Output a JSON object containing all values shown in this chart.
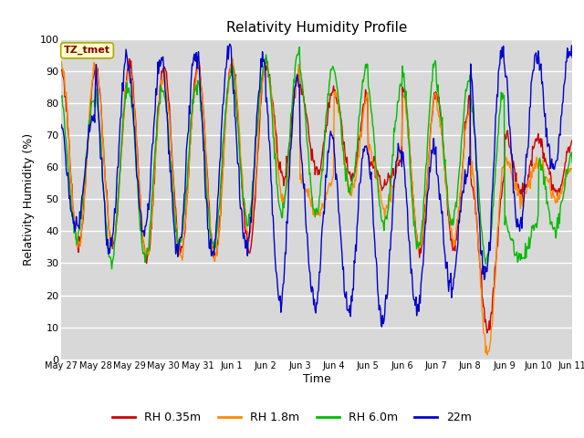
{
  "title": "Relativity Humidity Profile",
  "xlabel": "Time",
  "ylabel": "Relativity Humidity (%)",
  "ylim": [
    0,
    100
  ],
  "yticks": [
    0,
    10,
    20,
    30,
    40,
    50,
    60,
    70,
    80,
    90,
    100
  ],
  "plot_bg": "#d8d8d8",
  "fig_bg": "#ffffff",
  "legend_label": "TZ_tmet",
  "series_colors": [
    "#cc0000",
    "#ff8800",
    "#00bb00",
    "#0000cc"
  ],
  "series_labels": [
    "RH 0.35m",
    "RH 1.8m",
    "RH 6.0m",
    "22m"
  ],
  "xtick_labels": [
    "May 27",
    "May 28",
    "May 29",
    "May 30",
    "May 31",
    "Jun 1",
    "Jun 2",
    "Jun 3",
    "Jun 4",
    "Jun 5",
    "Jun 6",
    "Jun 7",
    "Jun 8",
    "Jun 9",
    "Jun 10",
    "Jun 11"
  ],
  "n_days": 15,
  "pts_per_day": 48
}
